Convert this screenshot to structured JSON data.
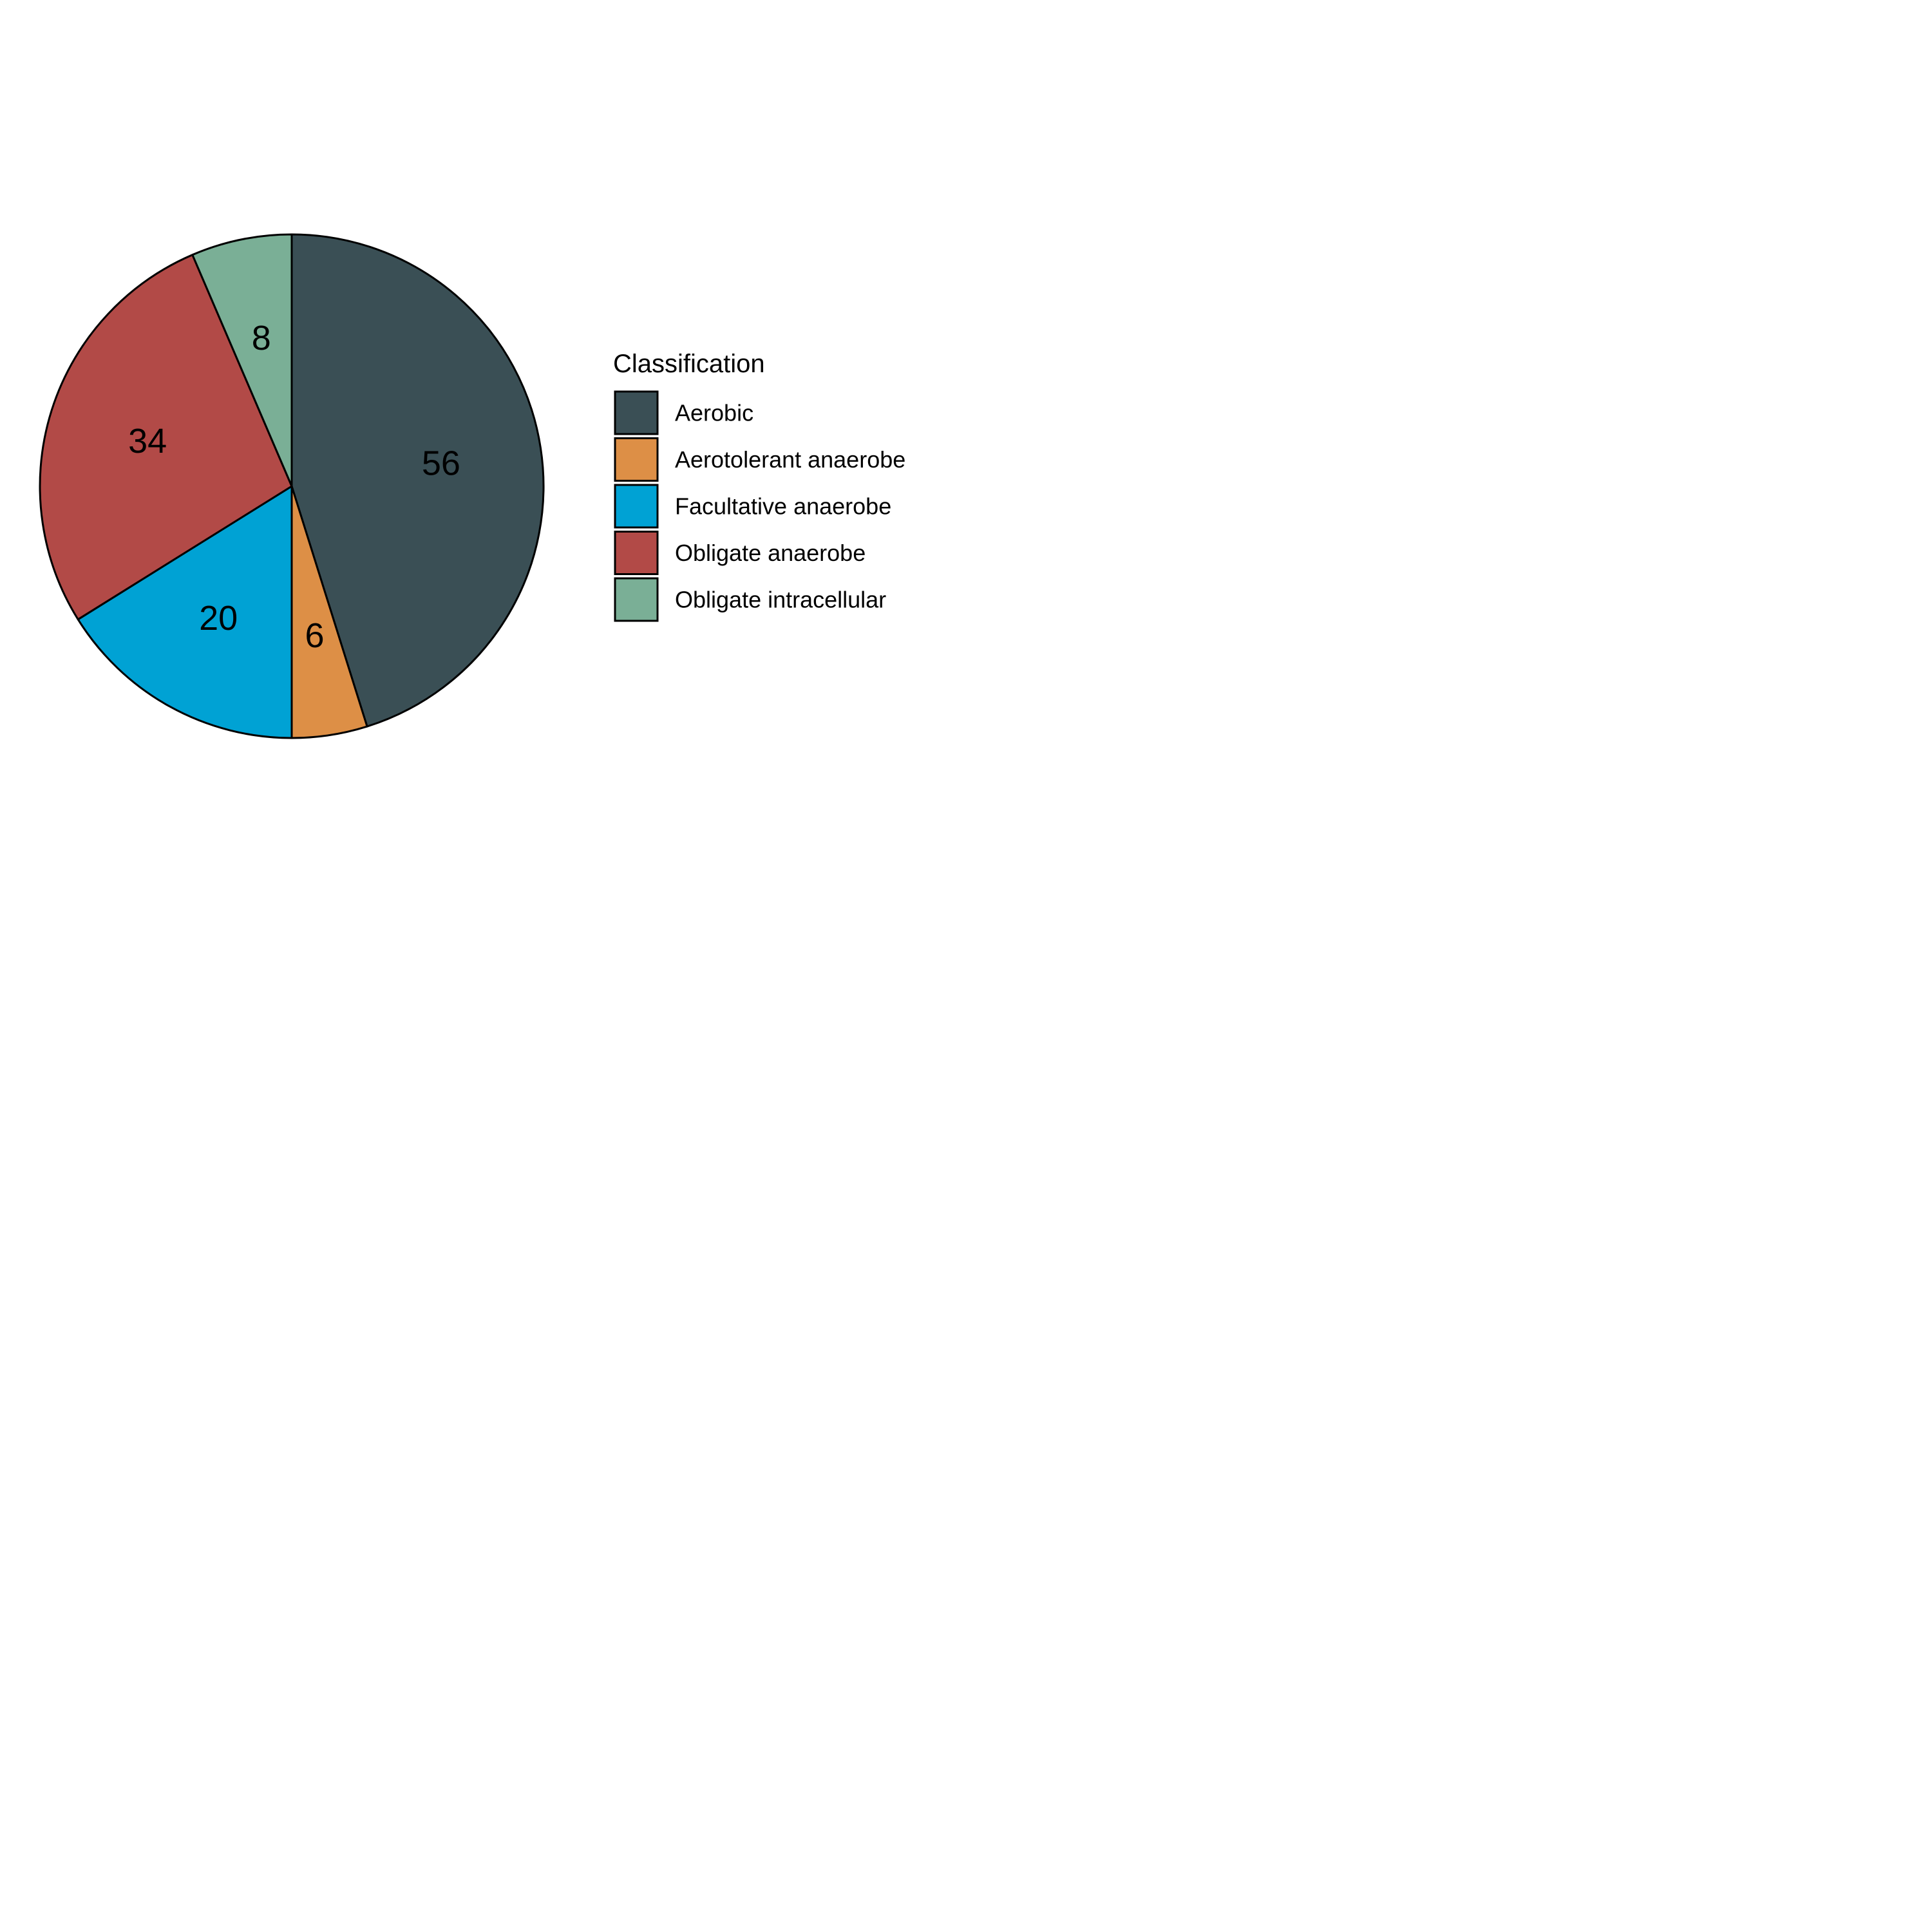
{
  "chart_data": {
    "type": "pie",
    "categories": [
      "Aerobic",
      "Aerotolerant anaerobe",
      "Facultative anaerobe",
      "Obligate anaerobe",
      "Obligate intracellular"
    ],
    "values": [
      56,
      6,
      20,
      34,
      8
    ],
    "colors": [
      "#3a4f55",
      "#dd8f46",
      "#00a2d4",
      "#b24a47",
      "#7aaf96"
    ],
    "data_labels": [
      "56",
      "6",
      "20",
      "34",
      "8"
    ],
    "start_angle_deg": 0,
    "direction": "clockwise",
    "legend": {
      "title": "Classification",
      "placement": "right"
    }
  }
}
